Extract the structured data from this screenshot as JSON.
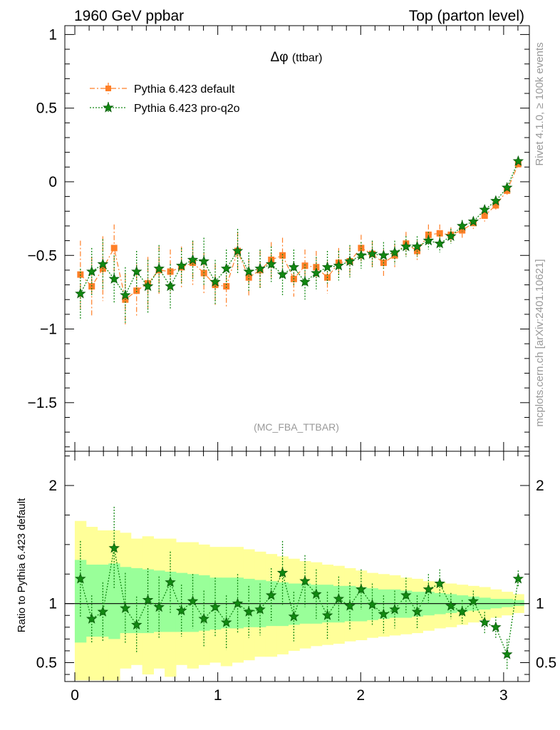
{
  "header": {
    "energy_label": "1960 GeV ppbar",
    "process_label": "Top (parton level)"
  },
  "side_text": {
    "rivet": "Rivet 4.1.0, ≥ 100k events",
    "mcplots": "mcplots.cern.ch [arXiv:2401.10621]"
  },
  "colors": {
    "default": "#ff7f27",
    "pro": "#118811",
    "band_inner": "#99ff99",
    "band_outer": "#ffff99"
  },
  "chart_data": [
    {
      "type": "line",
      "title": "Δφ",
      "title_suffix": "(ttbar)",
      "analysis_tag": "(MC_FBA_TTBAR)",
      "xlabel": "",
      "ylabel": "",
      "xlim": [
        -0.07,
        3.18
      ],
      "ylim": [
        -1.83,
        1.06
      ],
      "yticks": [
        1,
        0.5,
        0,
        -0.5,
        -1,
        -1.5
      ],
      "ytick_labels": [
        "1",
        "0.5",
        "0",
        "−0.5",
        "−1",
        "−1.5"
      ],
      "legend_position": "top-left",
      "x": [
        0.039,
        0.118,
        0.196,
        0.275,
        0.353,
        0.432,
        0.511,
        0.589,
        0.668,
        0.746,
        0.825,
        0.903,
        0.982,
        1.06,
        1.139,
        1.217,
        1.296,
        1.374,
        1.453,
        1.532,
        1.61,
        1.689,
        1.767,
        1.846,
        1.924,
        2.003,
        2.081,
        2.16,
        2.238,
        2.317,
        2.395,
        2.474,
        2.553,
        2.631,
        2.71,
        2.788,
        2.867,
        2.945,
        3.024,
        3.102
      ],
      "series": [
        {
          "name": "Pythia 6.423 default",
          "values": [
            -0.63,
            -0.71,
            -0.59,
            -0.45,
            -0.8,
            -0.74,
            -0.69,
            -0.6,
            -0.61,
            -0.58,
            -0.55,
            -0.62,
            -0.7,
            -0.71,
            -0.47,
            -0.65,
            -0.6,
            -0.53,
            -0.5,
            -0.66,
            -0.57,
            -0.58,
            -0.65,
            -0.55,
            -0.54,
            -0.45,
            -0.49,
            -0.55,
            -0.5,
            -0.42,
            -0.47,
            -0.36,
            -0.35,
            -0.36,
            -0.33,
            -0.28,
            -0.23,
            -0.16,
            -0.06,
            0.12
          ],
          "errors": [
            0.23,
            0.2,
            0.22,
            0.16,
            0.18,
            0.18,
            0.18,
            0.16,
            0.15,
            0.14,
            0.15,
            0.14,
            0.14,
            0.14,
            0.13,
            0.13,
            0.13,
            0.12,
            0.12,
            0.12,
            0.11,
            0.11,
            0.11,
            0.1,
            0.1,
            0.09,
            0.09,
            0.09,
            0.08,
            0.08,
            0.07,
            0.07,
            0.06,
            0.05,
            0.05,
            0.04,
            0.04,
            0.03,
            0.03,
            0.02
          ]
        },
        {
          "name": "Pythia 6.423 pro-q2o",
          "values": [
            -0.76,
            -0.61,
            -0.56,
            -0.66,
            -0.77,
            -0.61,
            -0.71,
            -0.59,
            -0.71,
            -0.57,
            -0.53,
            -0.54,
            -0.68,
            -0.59,
            -0.47,
            -0.61,
            -0.59,
            -0.56,
            -0.63,
            -0.58,
            -0.68,
            -0.62,
            -0.58,
            -0.57,
            -0.54,
            -0.5,
            -0.49,
            -0.5,
            -0.48,
            -0.44,
            -0.44,
            -0.4,
            -0.42,
            -0.37,
            -0.3,
            -0.27,
            -0.19,
            -0.13,
            -0.04,
            0.14
          ],
          "errors": [
            0.17,
            0.16,
            0.17,
            0.16,
            0.19,
            0.14,
            0.18,
            0.16,
            0.15,
            0.12,
            0.13,
            0.16,
            0.15,
            0.13,
            0.15,
            0.13,
            0.13,
            0.12,
            0.14,
            0.12,
            0.12,
            0.11,
            0.11,
            0.1,
            0.11,
            0.09,
            0.09,
            0.09,
            0.08,
            0.07,
            0.07,
            0.06,
            0.06,
            0.05,
            0.04,
            0.03,
            0.03,
            0.03,
            0.02,
            0.02
          ]
        }
      ]
    },
    {
      "type": "line",
      "title": "",
      "xlabel": "",
      "ylabel": "Ratio to Pythia 6.423 default",
      "xlim": [
        -0.07,
        3.18
      ],
      "ylim": [
        0.34,
        2.29
      ],
      "yticks": [
        2,
        1,
        0.5
      ],
      "ytick_labels": [
        "2",
        "1",
        "0.5"
      ],
      "xticks": [
        0,
        1,
        2,
        3
      ],
      "xtick_labels": [
        "0",
        "1",
        "2",
        "3"
      ],
      "reference_line": 1,
      "band_inner": [
        [
          0.67,
          1.37
        ],
        [
          0.72,
          1.33
        ],
        [
          0.72,
          1.33
        ],
        [
          0.7,
          1.34
        ],
        [
          0.75,
          1.31
        ],
        [
          0.75,
          1.3
        ],
        [
          0.75,
          1.29
        ],
        [
          0.76,
          1.28
        ],
        [
          0.76,
          1.27
        ],
        [
          0.76,
          1.26
        ],
        [
          0.76,
          1.25
        ],
        [
          0.77,
          1.24
        ],
        [
          0.78,
          1.22
        ],
        [
          0.79,
          1.22
        ],
        [
          0.79,
          1.22
        ],
        [
          0.8,
          1.21
        ],
        [
          0.8,
          1.2
        ],
        [
          0.81,
          1.19
        ],
        [
          0.81,
          1.18
        ],
        [
          0.82,
          1.17
        ],
        [
          0.83,
          1.17
        ],
        [
          0.83,
          1.16
        ],
        [
          0.84,
          1.16
        ],
        [
          0.84,
          1.15
        ],
        [
          0.85,
          1.15
        ],
        [
          0.85,
          1.14
        ],
        [
          0.86,
          1.13
        ],
        [
          0.87,
          1.12
        ],
        [
          0.88,
          1.12
        ],
        [
          0.88,
          1.11
        ],
        [
          0.89,
          1.1
        ],
        [
          0.9,
          1.1
        ],
        [
          0.91,
          1.09
        ],
        [
          0.92,
          1.08
        ],
        [
          0.93,
          1.07
        ],
        [
          0.94,
          1.06
        ],
        [
          0.95,
          1.05
        ],
        [
          0.96,
          1.04
        ],
        [
          0.97,
          1.04
        ],
        [
          0.98,
          1.03
        ]
      ],
      "band_outer": [
        [
          0.35,
          1.7
        ],
        [
          0.35,
          1.65
        ],
        [
          0.35,
          1.62
        ],
        [
          0.35,
          1.62
        ],
        [
          0.45,
          1.6
        ],
        [
          0.48,
          1.55
        ],
        [
          0.4,
          1.57
        ],
        [
          0.45,
          1.55
        ],
        [
          0.38,
          1.55
        ],
        [
          0.48,
          1.52
        ],
        [
          0.45,
          1.52
        ],
        [
          0.48,
          1.5
        ],
        [
          0.5,
          1.48
        ],
        [
          0.47,
          1.48
        ],
        [
          0.5,
          1.48
        ],
        [
          0.52,
          1.46
        ],
        [
          0.55,
          1.44
        ],
        [
          0.55,
          1.42
        ],
        [
          0.57,
          1.4
        ],
        [
          0.6,
          1.38
        ],
        [
          0.62,
          1.36
        ],
        [
          0.64,
          1.35
        ],
        [
          0.65,
          1.33
        ],
        [
          0.66,
          1.32
        ],
        [
          0.68,
          1.3
        ],
        [
          0.69,
          1.28
        ],
        [
          0.71,
          1.26
        ],
        [
          0.72,
          1.25
        ],
        [
          0.73,
          1.24
        ],
        [
          0.74,
          1.22
        ],
        [
          0.75,
          1.21
        ],
        [
          0.77,
          1.19
        ],
        [
          0.79,
          1.18
        ],
        [
          0.8,
          1.17
        ],
        [
          0.82,
          1.16
        ],
        [
          0.84,
          1.15
        ],
        [
          0.86,
          1.14
        ],
        [
          0.88,
          1.12
        ],
        [
          0.9,
          1.1
        ],
        [
          0.92,
          1.08
        ]
      ],
      "series": [
        {
          "name": "Pythia 6.423 pro-q2o",
          "values": [
            1.21,
            0.87,
            0.93,
            1.47,
            0.96,
            0.82,
            1.03,
            0.97,
            1.18,
            0.94,
            1.02,
            0.87,
            0.97,
            0.84,
            1.0,
            0.93,
            0.95,
            1.07,
            1.26,
            0.89,
            1.19,
            1.08,
            0.9,
            1.04,
            0.98,
            1.12,
            0.99,
            0.91,
            0.95,
            1.07,
            0.93,
            1.12,
            1.17,
            0.98,
            0.93,
            1.02,
            0.84,
            0.8,
            0.57,
            1.21
          ],
          "errors": [
            0.32,
            0.2,
            0.25,
            0.35,
            0.3,
            0.24,
            0.27,
            0.26,
            0.26,
            0.22,
            0.23,
            0.24,
            0.25,
            0.23,
            0.25,
            0.22,
            0.22,
            0.23,
            0.27,
            0.21,
            0.22,
            0.21,
            0.2,
            0.19,
            0.2,
            0.17,
            0.18,
            0.16,
            0.16,
            0.15,
            0.14,
            0.13,
            0.12,
            0.11,
            0.1,
            0.09,
            0.09,
            0.09,
            0.13,
            0.07
          ]
        }
      ]
    }
  ]
}
